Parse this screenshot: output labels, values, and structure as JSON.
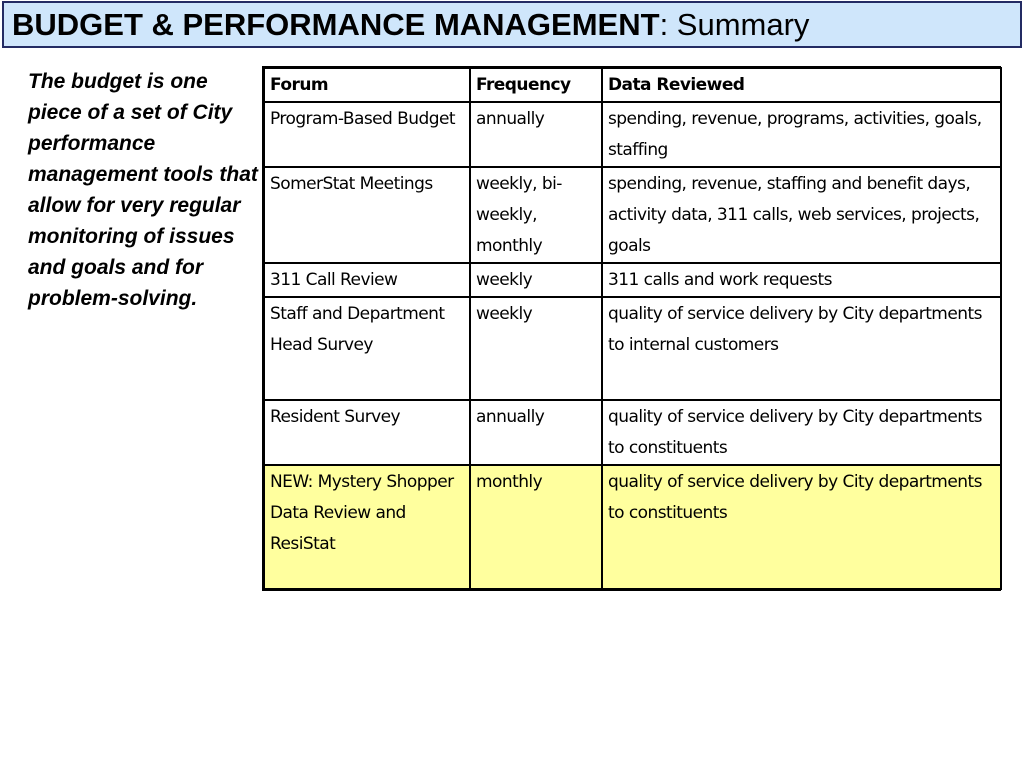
{
  "title": {
    "bold": "BUDGET & PERFORMANCE MANAGEMENT",
    "normal": ": Summary"
  },
  "side_text": "The budget is one piece of a set of City performance management tools that allow for very regular monitoring of issues and goals and for problem-solving.",
  "table": {
    "headers": [
      "Forum",
      "Frequency",
      "Data Reviewed"
    ],
    "rows": [
      {
        "forum": "Program-Based Budget",
        "frequency": "annually",
        "data": "spending, revenue, programs, activities, goals, staffing"
      },
      {
        "forum": "SomerStat Meetings",
        "frequency": "weekly, bi-weekly, monthly",
        "data": "spending, revenue, staffing and benefit days, activity data, 311 calls, web services, projects, goals"
      },
      {
        "forum": "311 Call Review",
        "frequency": "weekly",
        "data": "311 calls and work requests"
      },
      {
        "forum": "Staff and Department Head Survey",
        "frequency": "weekly",
        "data": "quality of service delivery by City departments to internal customers"
      },
      {
        "forum": "Resident Survey",
        "frequency": "annually",
        "data": "quality of service delivery by City departments to constituents"
      },
      {
        "forum": "NEW: Mystery Shopper Data Review and ResiStat",
        "frequency": "monthly",
        "data": "quality of service delivery by City departments to constituents"
      }
    ]
  },
  "colors": {
    "title_background": "#cfe6fb",
    "title_border": "#232b63",
    "highlight_row": "#ffff9e"
  }
}
